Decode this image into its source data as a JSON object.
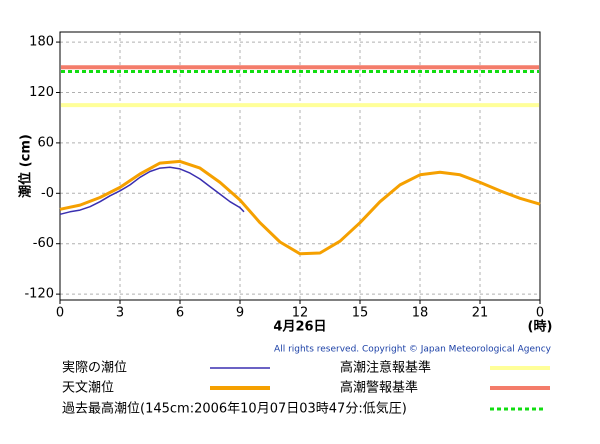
{
  "chart_data": {
    "type": "line",
    "y_label": "潮位 (cm)",
    "x_label": "4月26日",
    "x_unit": "(時)",
    "copyright": "All rights reserved. Copyright © Japan Meteorological Agency",
    "xlim": [
      0,
      24
    ],
    "ylim": [
      -127,
      192
    ],
    "xticks": [
      0,
      3,
      6,
      9,
      12,
      15,
      18,
      21,
      {
        "value": 24,
        "label": "0"
      }
    ],
    "yticks": [
      -120,
      -60,
      {
        "value": 0,
        "label": "-0"
      },
      60,
      120,
      180
    ],
    "grid": true,
    "series": [
      {
        "name": "実際の潮位",
        "color": "#3a2fb0",
        "x": [
          0,
          0.5,
          1,
          1.5,
          2,
          2.5,
          3,
          3.5,
          4,
          4.5,
          5,
          5.5,
          6,
          6.5,
          7,
          7.5,
          8,
          8.5,
          9,
          9.2
        ],
        "values": [
          -25,
          -22,
          -20,
          -16,
          -10,
          -3,
          3,
          10,
          19,
          26,
          30,
          31,
          29,
          24,
          17,
          8,
          -1,
          -10,
          -17,
          -22
        ]
      },
      {
        "name": "天文潮位",
        "color": "#f5a000",
        "x": [
          0,
          1,
          2,
          3,
          4,
          5,
          6,
          7,
          8,
          9,
          10,
          11,
          12,
          13,
          14,
          15,
          16,
          17,
          18,
          19,
          20,
          21,
          22,
          23,
          24
        ],
        "values": [
          -19,
          -14,
          -5,
          7,
          23,
          36,
          38,
          30,
          13,
          -8,
          -35,
          -58,
          -72,
          -71,
          -57,
          -35,
          -10,
          10,
          22,
          25,
          22,
          13,
          3,
          -6,
          -13
        ]
      }
    ],
    "hlines": [
      {
        "name": "高潮注意報基準",
        "color": "#ffff99",
        "value": 105,
        "style": "solid"
      },
      {
        "name": "高潮警報基準",
        "color": "#f47c6a",
        "value": 150,
        "style": "solid"
      },
      {
        "name": "過去最高潮位(145cm:2006年10月07日03時47分:低気圧)",
        "color": "#11dd11",
        "value": 145,
        "style": "dotted"
      }
    ]
  }
}
